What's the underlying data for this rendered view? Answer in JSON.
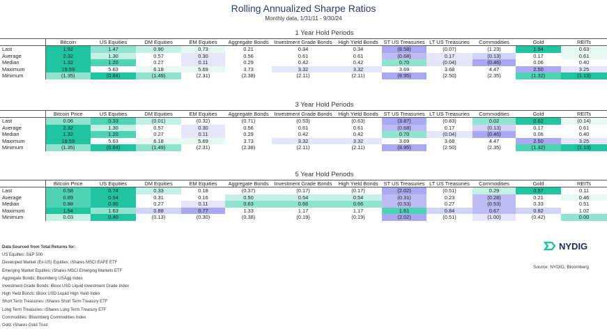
{
  "title": "Rolling Annualized Sharpe Ratios",
  "subtitle": "Monthly data, 1/31/11 - 9/30/24",
  "row_labels": [
    "Last",
    "Average",
    "Median",
    "Maximum",
    "Minimum"
  ],
  "colors": {
    "teal": "#20c4a0",
    "purple": "#a9a8f0"
  },
  "chart_data": {
    "type": "table",
    "tables": [
      {
        "title": "1 Year Hold Periods",
        "columns": [
          "Bitcoin",
          "US Equities",
          "DM Equities",
          "EM Equities",
          "Aggregate Bonds",
          "Investment Grade Bonds",
          "High Yield Bonds",
          "ST US Treasuries",
          "LT US Treasuries",
          "Commodities",
          "Gold",
          "REITs"
        ],
        "rows": [
          [
            "1.92",
            "1.47",
            "0.90",
            "0.73",
            "0.21",
            "0.34",
            "0.34",
            "(8.58)",
            "(0.07)",
            "(1.23)",
            "1.94",
            "0.63"
          ],
          [
            "2.32",
            "1.30",
            "0.57",
            "0.30",
            "0.56",
            "0.61",
            "0.61",
            "(0.68)",
            "0.17",
            "(0.13)",
            "0.17",
            "0.61"
          ],
          [
            "1.32",
            "1.20",
            "0.27",
            "0.11",
            "0.29",
            "0.42",
            "0.42",
            "0.70",
            "(0.04)",
            "(0.46)",
            "0.06",
            "0.40"
          ],
          [
            "19.59",
            "5.63",
            "6.18",
            "5.69",
            "3.73",
            "3.32",
            "3.32",
            "3.69",
            "3.68",
            "4.47",
            "2.50",
            "3.25"
          ],
          [
            "(1.35)",
            "(0.84)",
            "(1.49)",
            "(2.31)",
            "(2.38)",
            "(2.11)",
            "(2.11)",
            "(8.95)",
            "(2.50)",
            "(2.35)",
            "(1.32)",
            "(1.13)"
          ]
        ],
        "shades": [
          [
            "t4",
            "t2",
            "t1",
            "t0",
            "",
            "",
            "",
            "p4",
            "",
            "",
            "t4",
            "t0"
          ],
          [
            "t4",
            "t1",
            "",
            "p1",
            "",
            "",
            "",
            "p3",
            "p1",
            "p2",
            "",
            "t0"
          ],
          [
            "t4",
            "t3",
            "",
            "p1",
            "",
            "",
            "",
            "t2",
            "p1",
            "p4",
            "",
            ""
          ],
          [
            "t4",
            "",
            "t0",
            "t0",
            "",
            "p1",
            "p1",
            "",
            "",
            "",
            "p4",
            "p1"
          ],
          [
            "t2",
            "t4",
            "t2",
            "",
            "",
            "",
            "",
            "p4",
            "",
            "",
            "t3",
            "t4"
          ]
        ]
      },
      {
        "title": "3 Year Hold Periods",
        "columns": [
          "Bitcoin Price",
          "US Equities",
          "DM Equities",
          "EM Equities",
          "Aggregate Bonds",
          "Investment Grade Bonds",
          "High Yield Bonds",
          "ST US Treasuries",
          "LT US Treasuries",
          "Commodities",
          "Gold",
          "REITs"
        ],
        "rows": [
          [
            "0.06",
            "0.33",
            "(0.01)",
            "(0.32)",
            "(0.71)",
            "(0.53)",
            "(0.63)",
            "(3.87)",
            "(0.83)",
            "0.02",
            "0.62",
            "(0.14)"
          ],
          [
            "2.32",
            "1.30",
            "0.57",
            "0.30",
            "0.56",
            "0.61",
            "0.61",
            "(0.68)",
            "0.17",
            "(0.13)",
            "0.17",
            "0.61"
          ],
          [
            "1.32",
            "1.20",
            "0.27",
            "0.11",
            "0.29",
            "0.42",
            "0.42",
            "0.70",
            "(0.04)",
            "(0.46)",
            "0.06",
            "0.40"
          ],
          [
            "19.59",
            "5.63",
            "6.18",
            "5.69",
            "3.73",
            "3.32",
            "3.32",
            "3.69",
            "3.68",
            "4.47",
            "2.50",
            "3.25"
          ],
          [
            "(1.35)",
            "(0.84)",
            "(1.49)",
            "(2.31)",
            "(2.38)",
            "(2.11)",
            "(2.11)",
            "(8.95)",
            "(2.50)",
            "(2.35)",
            "(1.32)",
            "(1.13)"
          ]
        ],
        "shades": [
          [
            "t2",
            "t3",
            "t1",
            "",
            "",
            "",
            "",
            "p4",
            "",
            "t2",
            "t4",
            "t0"
          ],
          [
            "t4",
            "t1",
            "",
            "p1",
            "",
            "",
            "",
            "p3",
            "",
            "p2",
            "",
            ""
          ],
          [
            "t4",
            "t3",
            "",
            "p1",
            "",
            "",
            "",
            "t2",
            "p1",
            "p4",
            "",
            ""
          ],
          [
            "t4",
            "",
            "t0",
            "t0",
            "",
            "p1",
            "p1",
            "",
            "",
            "",
            "p4",
            "p1"
          ],
          [
            "t2",
            "t4",
            "t2",
            "",
            "",
            "",
            "",
            "p4",
            "",
            "",
            "t3",
            "t4"
          ]
        ]
      },
      {
        "title": "5 Year Hold Periods",
        "columns": [
          "Bitcoin Price",
          "US Equities",
          "DM Equities",
          "EM Equities",
          "Aggregate Bonds",
          "Investment Grade Bonds",
          "High Yield Bonds",
          "ST US Treasuries",
          "LT US Treasuries",
          "Commodities",
          "Gold",
          "REITs"
        ],
        "rows": [
          [
            "0.58",
            "0.74",
            "0.33",
            "0.18",
            "(0.37)",
            "(0.17)",
            "(0.17)",
            "(2.02)",
            "(0.51)",
            "0.29",
            "0.57",
            "0.11"
          ],
          [
            "0.89",
            "0.94",
            "0.31",
            "0.16",
            "0.50",
            "0.54",
            "0.54",
            "(0.31)",
            "0.23",
            "(0.28)",
            "0.21",
            "0.46"
          ],
          [
            "0.88",
            "0.90",
            "0.27",
            "0.11",
            "0.63",
            "0.66",
            "0.66",
            "(0.53)",
            "0.27",
            "(0.53)",
            "0.33",
            "0.51"
          ],
          [
            "1.94",
            "1.63",
            "0.88",
            "0.77",
            "1.33",
            "1.17",
            "1.17",
            "1.61",
            "0.84",
            "0.67",
            "0.82",
            "1.02"
          ],
          [
            "0.03",
            "0.40",
            "(0.13)",
            "(0.30)",
            "(0.38)",
            "(0.19)",
            "(0.19)",
            "(2.02)",
            "(0.51)",
            "(1.00)",
            "(0.42)",
            "0.00"
          ]
        ],
        "shades": [
          [
            "t3",
            "t4",
            "t1",
            "",
            "",
            "",
            "",
            "p4",
            "",
            "t1",
            "t4",
            ""
          ],
          [
            "t3",
            "t4",
            "",
            "",
            "t1",
            "t1",
            "t1",
            "p3",
            "",
            "p3",
            "",
            "t0"
          ],
          [
            "t3",
            "t4",
            "",
            "p1",
            "t2",
            "t2",
            "t2",
            "p3",
            "",
            "p3",
            "",
            ""
          ],
          [
            "t4",
            "t2",
            "p2",
            "p4",
            "",
            "",
            "",
            "t3",
            "p2",
            "p3",
            "p2",
            ""
          ],
          [
            "t1",
            "t4",
            "",
            "",
            "",
            "",
            "",
            "p4",
            "",
            "p1",
            "",
            "t2"
          ]
        ]
      }
    ]
  },
  "notes": {
    "heading": "Data Sourced from Total Returns for:",
    "items": [
      "US Equities: S&P 500",
      "Developed Market (Ex-US) Equities: iShares MSCI EAFE ETF",
      "Emerging Market Equities: iShares MSCI Emerging Markets ETF",
      "Aggregate Bonds: Bloomberg USAgg Index",
      "Investment Grade Bonds: iBoxx USD Liquid Investment Grade Index",
      "High Yield Bonds: iBoxx USD Liquid High Yield Index",
      "Short Term Treasuries: iShares Short Term Treasury ETF",
      "Long Term Treasuries: iShares Long Term Treasury ETF",
      "Commodities: Bloomberg Commodities Index",
      "Gold: iShares Gold Trust"
    ]
  },
  "logo": "NYDIG",
  "source": "Source: NYDIG, Bloomberg"
}
